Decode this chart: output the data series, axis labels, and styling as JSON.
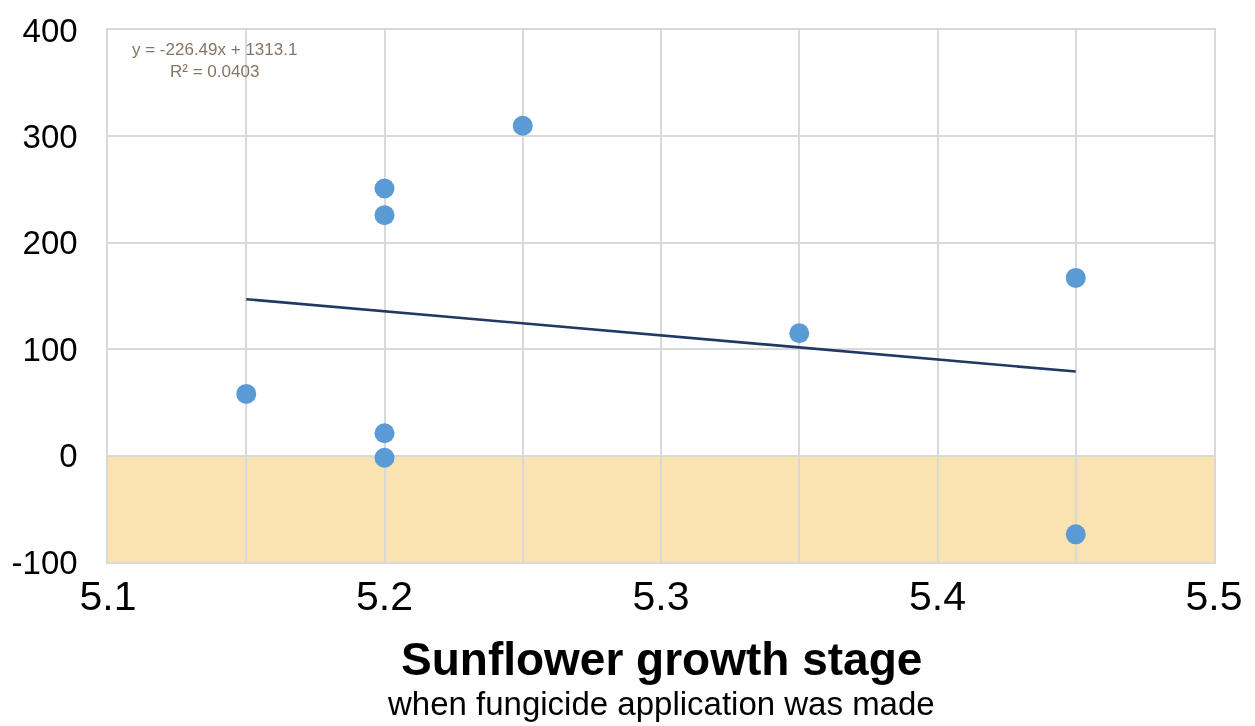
{
  "chart_data": {
    "type": "scatter",
    "xlabel": "Sunflower growth stage\nwhen fungicide application was made",
    "annotations": [
      "y = -226.49x + 1313.1",
      "R² = 0.0403"
    ],
    "series": [
      {
        "color": "#5b9bd5",
        "x": [
          5.15,
          5.2,
          5.2,
          5.2,
          5.2,
          5.25,
          5.35,
          5.45,
          5.45
        ],
        "values": [
          58,
          21,
          -2,
          251,
          226,
          310,
          115,
          167,
          -74
        ]
      },
      {
        "type": "line",
        "color": "#1f3864",
        "marker": "none",
        "x": [
          5.15,
          5.45
        ],
        "values": [
          147,
          79
        ]
      }
    ],
    "xlim": [
      5.1,
      5.5
    ],
    "xticks": [
      5.1,
      {
        "value": 5.15,
        "label": null
      },
      5.2,
      {
        "value": 5.25,
        "label": null
      },
      5.3,
      {
        "value": 5.35,
        "label": null
      },
      5.4,
      {
        "value": 5.45,
        "label": null
      },
      5.5
    ],
    "ylim": [
      -100,
      400
    ],
    "yticks": [
      -100,
      0,
      100,
      200,
      300,
      400
    ],
    "bands": [
      {
        "axis": "y",
        "from": -100,
        "to": 0,
        "color": "#fbe2b1"
      }
    ],
    "grid": true,
    "marker": "circle"
  }
}
